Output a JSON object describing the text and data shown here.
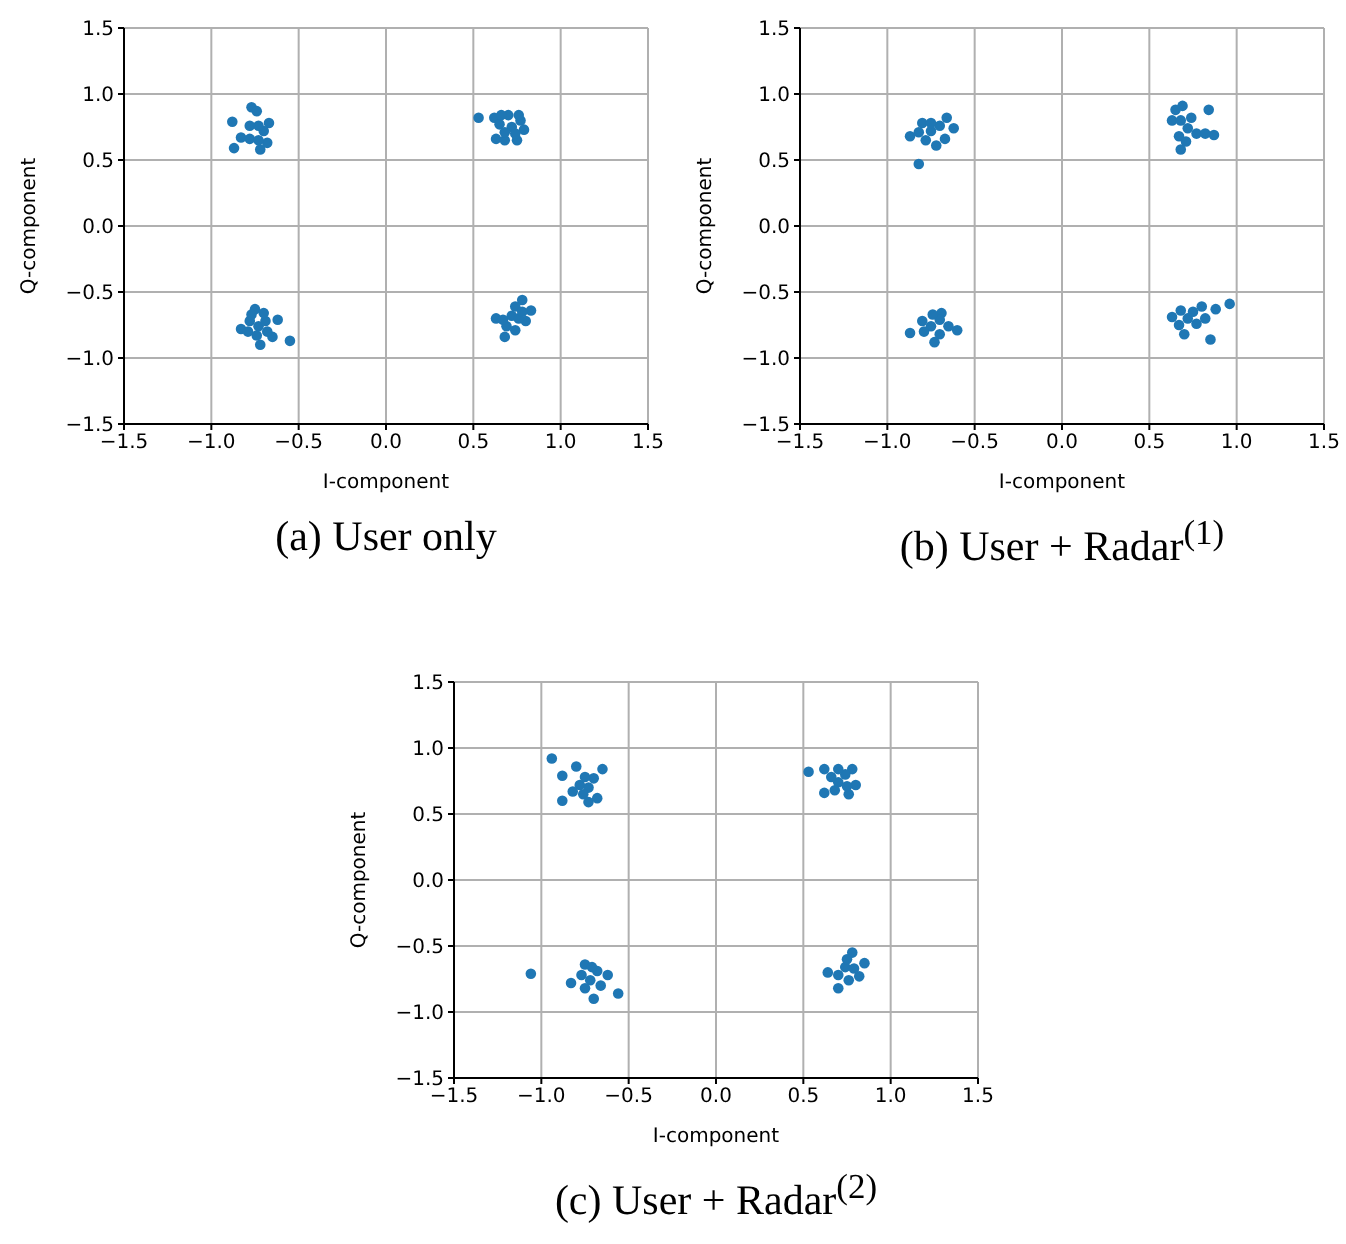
{
  "chart_data": [
    {
      "type": "scatter",
      "title": "(a) User only",
      "xlabel": "I-component",
      "ylabel": "Q-component",
      "xlim": [
        -1.5,
        1.5
      ],
      "ylim": [
        -1.5,
        1.5
      ],
      "xticks": [
        {
          "value": -1.5,
          "label": "−1.5"
        },
        {
          "value": -1,
          "label": "−1.0"
        },
        {
          "value": -0.5,
          "label": "−0.5"
        },
        {
          "value": 0,
          "label": "0.0"
        },
        {
          "value": 0.5,
          "label": "0.5"
        },
        {
          "value": 1,
          "label": "1.0"
        },
        {
          "value": 1.5,
          "label": "1.5"
        }
      ],
      "yticks": [
        {
          "value": -1.5,
          "label": "−1.5"
        },
        {
          "value": -1,
          "label": "−1.0"
        },
        {
          "value": -0.5,
          "label": "−0.5"
        },
        {
          "value": 0,
          "label": "0.0"
        },
        {
          "value": 0.5,
          "label": "0.5"
        },
        {
          "value": 1,
          "label": "1.0"
        },
        {
          "value": 1.5,
          "label": "1.5"
        }
      ],
      "grid": true,
      "marker": "circle",
      "series": [
        {
          "color": "#1f77b4",
          "x": [
            -0.88,
            -0.87,
            -0.77,
            -0.74,
            -0.67,
            -0.72,
            -0.68,
            -0.7,
            -0.78,
            -0.73,
            -0.73,
            -0.83,
            -0.78,
            0.53,
            0.62,
            0.63,
            0.68,
            0.75,
            0.79,
            0.77,
            0.7,
            0.65,
            0.72,
            0.68,
            0.74,
            0.66,
            0.76,
            -0.83,
            -0.72,
            -0.55,
            -0.62,
            -0.75,
            -0.65,
            -0.78,
            -0.73,
            -0.69,
            -0.77,
            -0.68,
            -0.79,
            -0.74,
            -0.7,
            0.63,
            0.68,
            0.78,
            0.83,
            0.8,
            0.74,
            0.72,
            0.69,
            0.76,
            0.74,
            0.67,
            0.78
          ],
          "values": [
            0.79,
            0.59,
            0.9,
            0.87,
            0.78,
            0.58,
            0.63,
            0.72,
            0.66,
            0.76,
            0.65,
            0.67,
            0.76,
            0.82,
            0.82,
            0.66,
            0.65,
            0.65,
            0.73,
            0.8,
            0.84,
            0.77,
            0.75,
            0.71,
            0.7,
            0.84,
            0.84,
            -0.78,
            -0.9,
            -0.87,
            -0.71,
            -0.63,
            -0.84,
            -0.72,
            -0.76,
            -0.72,
            -0.67,
            -0.8,
            -0.8,
            -0.83,
            -0.66,
            -0.7,
            -0.84,
            -0.56,
            -0.64,
            -0.72,
            -0.61,
            -0.68,
            -0.76,
            -0.7,
            -0.79,
            -0.71,
            -0.65
          ]
        }
      ]
    },
    {
      "type": "scatter",
      "title": "(b) User + Radar$^{(1)}$",
      "xlabel": "I-component",
      "ylabel": "Q-component",
      "xlim": [
        -1.5,
        1.5
      ],
      "ylim": [
        -1.5,
        1.5
      ],
      "xticks": [
        {
          "value": -1.5,
          "label": "−1.5"
        },
        {
          "value": -1,
          "label": "−1.0"
        },
        {
          "value": -0.5,
          "label": "−0.5"
        },
        {
          "value": 0,
          "label": "0.0"
        },
        {
          "value": 0.5,
          "label": "0.5"
        },
        {
          "value": 1,
          "label": "1.0"
        },
        {
          "value": 1.5,
          "label": "1.5"
        }
      ],
      "yticks": [
        {
          "value": -1.5,
          "label": "−1.5"
        },
        {
          "value": -1,
          "label": "−1.0"
        },
        {
          "value": -0.5,
          "label": "−0.5"
        },
        {
          "value": 0,
          "label": "0.0"
        },
        {
          "value": 0.5,
          "label": "0.5"
        },
        {
          "value": 1,
          "label": "1.0"
        },
        {
          "value": 1.5,
          "label": "1.5"
        }
      ],
      "grid": true,
      "marker": "circle",
      "series": [
        {
          "color": "#1f77b4",
          "x": [
            -0.87,
            -0.82,
            -0.66,
            -0.62,
            -0.72,
            -0.8,
            -0.75,
            -0.7,
            -0.82,
            -0.78,
            -0.67,
            -0.75,
            0.63,
            0.69,
            0.84,
            0.87,
            0.68,
            0.65,
            0.72,
            0.68,
            0.77,
            0.67,
            0.82,
            0.74,
            0.71,
            -0.87,
            -0.73,
            -0.6,
            -0.69,
            -0.8,
            -0.75,
            -0.7,
            -0.65,
            -0.74,
            -0.7,
            -0.79,
            0.63,
            0.96,
            0.85,
            0.88,
            0.8,
            0.7,
            0.72,
            0.77,
            0.68,
            0.75,
            0.82,
            0.67
          ],
          "values": [
            0.68,
            0.47,
            0.82,
            0.74,
            0.61,
            0.78,
            0.72,
            0.76,
            0.71,
            0.65,
            0.66,
            0.78,
            0.8,
            0.91,
            0.88,
            0.69,
            0.58,
            0.88,
            0.74,
            0.8,
            0.7,
            0.68,
            0.7,
            0.82,
            0.64,
            -0.81,
            -0.88,
            -0.79,
            -0.66,
            -0.72,
            -0.76,
            -0.71,
            -0.76,
            -0.67,
            -0.82,
            -0.8,
            -0.69,
            -0.59,
            -0.86,
            -0.63,
            -0.61,
            -0.82,
            -0.7,
            -0.74,
            -0.64,
            -0.65,
            -0.7,
            -0.75
          ]
        }
      ]
    },
    {
      "type": "scatter",
      "title": "(c) User + Radar$^{(2)}$",
      "xlabel": "I-component",
      "ylabel": "Q-component",
      "xlim": [
        -1.5,
        1.5
      ],
      "ylim": [
        -1.5,
        1.5
      ],
      "xticks": [
        {
          "value": -1.5,
          "label": "−1.5"
        },
        {
          "value": -1,
          "label": "−1.0"
        },
        {
          "value": -0.5,
          "label": "−0.5"
        },
        {
          "value": 0,
          "label": "0.0"
        },
        {
          "value": 0.5,
          "label": "0.5"
        },
        {
          "value": 1,
          "label": "1.0"
        },
        {
          "value": 1.5,
          "label": "1.5"
        }
      ],
      "yticks": [
        {
          "value": -1.5,
          "label": "−1.5"
        },
        {
          "value": -1,
          "label": "−1.0"
        },
        {
          "value": -0.5,
          "label": "−0.5"
        },
        {
          "value": 0,
          "label": "0.0"
        },
        {
          "value": 0.5,
          "label": "0.5"
        },
        {
          "value": 1,
          "label": "1.0"
        },
        {
          "value": 1.5,
          "label": "1.5"
        }
      ],
      "grid": true,
      "marker": "circle",
      "series": [
        {
          "color": "#1f77b4",
          "x": [
            -0.94,
            -0.8,
            -0.88,
            -0.88,
            -0.65,
            -0.73,
            -0.68,
            -0.78,
            -0.73,
            -0.82,
            -0.76,
            -0.7,
            -0.75,
            0.53,
            0.62,
            0.78,
            0.62,
            0.76,
            0.8,
            0.7,
            0.66,
            0.74,
            0.68,
            0.75,
            0.7,
            -1.06,
            -0.83,
            -0.7,
            -0.56,
            -0.62,
            -0.75,
            -0.77,
            -0.72,
            -0.68,
            -0.75,
            -0.66,
            -0.71,
            0.64,
            0.7,
            0.78,
            0.85,
            0.82,
            0.74,
            0.7,
            0.76,
            0.79,
            0.75
          ],
          "values": [
            0.92,
            0.86,
            0.79,
            0.6,
            0.84,
            0.59,
            0.62,
            0.72,
            0.7,
            0.67,
            0.65,
            0.77,
            0.78,
            0.82,
            0.84,
            0.84,
            0.66,
            0.65,
            0.72,
            0.74,
            0.78,
            0.8,
            0.68,
            0.71,
            0.84,
            -0.71,
            -0.78,
            -0.9,
            -0.86,
            -0.72,
            -0.64,
            -0.72,
            -0.76,
            -0.69,
            -0.82,
            -0.8,
            -0.66,
            -0.7,
            -0.82,
            -0.55,
            -0.63,
            -0.73,
            -0.66,
            -0.72,
            -0.76,
            -0.67,
            -0.6
          ]
        }
      ]
    }
  ]
}
